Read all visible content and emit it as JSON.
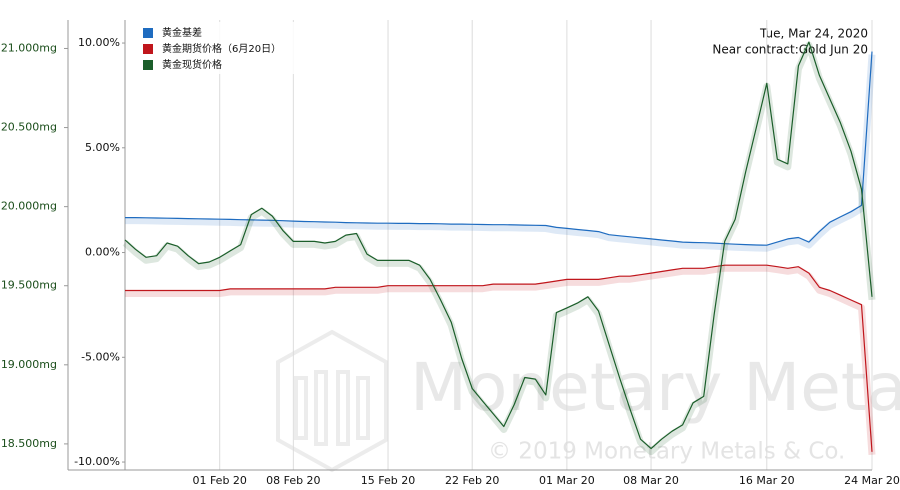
{
  "chart_data": {
    "type": "line",
    "annotations": [
      "Tue, Mar 24, 2020",
      "Near contract:Gold Jun 20"
    ],
    "watermark": [
      "Monetary Metals",
      "© 2019 Monetary Metals & Co."
    ],
    "categories": [
      null,
      null,
      null,
      null,
      null,
      null,
      null,
      null,
      null,
      "01 Feb 20",
      null,
      null,
      null,
      null,
      null,
      null,
      "08 Feb 20",
      null,
      null,
      null,
      null,
      null,
      null,
      null,
      null,
      "15 Feb 20",
      null,
      null,
      null,
      null,
      null,
      null,
      null,
      "22 Feb 20",
      null,
      null,
      null,
      null,
      null,
      null,
      null,
      null,
      "01 Mar 20",
      null,
      null,
      null,
      null,
      null,
      null,
      null,
      "08 Mar 20",
      null,
      null,
      null,
      null,
      null,
      null,
      null,
      null,
      null,
      null,
      "16 Mar 20",
      null,
      null,
      null,
      null,
      null,
      null,
      null,
      null,
      null,
      "24 Mar 20"
    ],
    "series": [
      {
        "name": "黄金基差",
        "color": "#1f6cc0",
        "axis": "y2",
        "values": [
          1.67,
          1.67,
          1.66,
          1.65,
          1.64,
          1.63,
          1.62,
          1.61,
          1.6,
          1.59,
          1.58,
          1.57,
          1.56,
          1.55,
          1.54,
          1.52,
          1.5,
          1.48,
          1.47,
          1.46,
          1.45,
          1.43,
          1.42,
          1.41,
          1.4,
          1.4,
          1.39,
          1.39,
          1.38,
          1.38,
          1.37,
          1.36,
          1.36,
          1.35,
          1.34,
          1.33,
          1.33,
          1.32,
          1.31,
          1.3,
          1.29,
          1.2,
          1.15,
          1.1,
          1.05,
          1.0,
          0.85,
          0.8,
          0.75,
          0.7,
          0.65,
          0.6,
          0.55,
          0.5,
          0.48,
          0.47,
          0.45,
          0.42,
          0.4,
          0.38,
          0.36,
          0.35,
          0.5,
          0.65,
          0.72,
          0.5,
          1.0,
          1.45,
          1.7,
          1.95,
          2.25,
          9.59
        ]
      },
      {
        "name": "黄金期货价格（6月20日）",
        "color": "#c0161c",
        "values": [
          19.47,
          19.47,
          19.47,
          19.47,
          19.47,
          19.47,
          19.47,
          19.47,
          19.47,
          19.47,
          19.48,
          19.48,
          19.48,
          19.48,
          19.48,
          19.48,
          19.48,
          19.48,
          19.48,
          19.48,
          19.49,
          19.49,
          19.49,
          19.49,
          19.49,
          19.5,
          19.5,
          19.5,
          19.5,
          19.5,
          19.5,
          19.5,
          19.5,
          19.5,
          19.5,
          19.51,
          19.51,
          19.51,
          19.51,
          19.51,
          19.52,
          19.53,
          19.54,
          19.54,
          19.54,
          19.54,
          19.55,
          19.56,
          19.56,
          19.57,
          19.58,
          19.59,
          19.6,
          19.61,
          19.61,
          19.61,
          19.62,
          19.63,
          19.63,
          19.63,
          19.63,
          19.63,
          19.62,
          19.61,
          19.62,
          19.58,
          19.49,
          19.47,
          19.44,
          19.41,
          19.38,
          18.45
        ]
      },
      {
        "name": "黄金现货价格",
        "color": "#1b5e2a",
        "values": [
          19.79,
          19.73,
          19.68,
          19.69,
          19.77,
          19.75,
          19.69,
          19.64,
          19.65,
          19.68,
          19.72,
          19.76,
          19.95,
          19.99,
          19.94,
          19.85,
          19.78,
          19.78,
          19.78,
          19.77,
          19.78,
          19.82,
          19.83,
          19.7,
          19.66,
          19.66,
          19.66,
          19.66,
          19.63,
          19.54,
          19.41,
          19.27,
          19.04,
          18.85,
          18.77,
          18.69,
          18.61,
          18.75,
          18.92,
          18.91,
          18.81,
          19.33,
          19.36,
          19.39,
          19.43,
          19.34,
          19.13,
          18.92,
          18.72,
          18.53,
          18.47,
          18.53,
          18.58,
          18.62,
          18.76,
          18.8,
          19.32,
          19.78,
          19.92,
          20.22,
          20.5,
          20.78,
          20.3,
          20.27,
          20.89,
          21.04,
          20.83,
          20.68,
          20.53,
          20.35,
          20.11,
          19.43
        ]
      }
    ],
    "ylim": [
      18.335,
      21.18
    ],
    "yticks": [
      {
        "value": 18.5,
        "label": "18.500mg"
      },
      {
        "value": 19,
        "label": "19.000mg"
      },
      {
        "value": 19.5,
        "label": "19.500mg"
      },
      {
        "value": 20,
        "label": "20.000mg"
      },
      {
        "value": 20.5,
        "label": "20.500mg"
      },
      {
        "value": 21,
        "label": "21.000mg"
      }
    ],
    "y2lim": [
      -10.38,
      11.1
    ],
    "y2ticks": [
      {
        "value": -10,
        "label": "-10.00%"
      },
      {
        "value": -5,
        "label": "-5.00%"
      },
      {
        "value": 0,
        "label": "0.00%"
      },
      {
        "value": 5,
        "label": "5.00%"
      },
      {
        "value": 10,
        "label": "10.00%"
      }
    ],
    "grid": "x",
    "legend": "top-left"
  }
}
